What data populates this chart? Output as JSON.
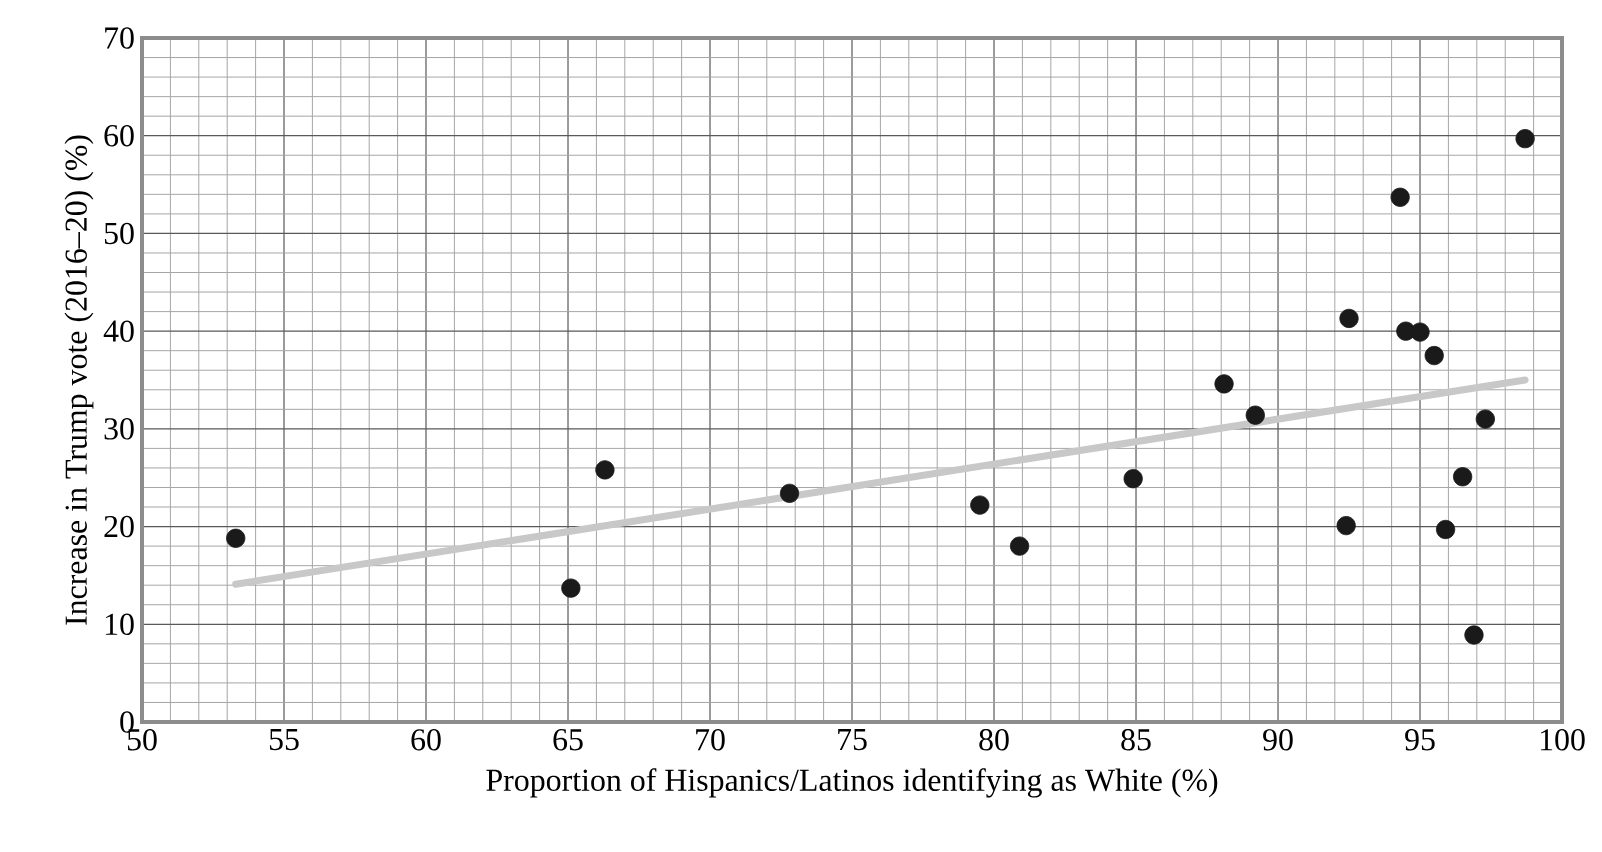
{
  "chart_data": {
    "type": "scatter",
    "xlabel": "Proportion of Hispanics/Latinos identifying as White (%)",
    "ylabel": "Increase in Trump vote (2016–20) (%)",
    "xlim": [
      50,
      100
    ],
    "ylim": [
      0,
      70
    ],
    "xticks": [
      50,
      55,
      60,
      65,
      70,
      75,
      80,
      85,
      90,
      95,
      100
    ],
    "yticks": [
      0,
      10,
      20,
      30,
      40,
      50,
      60,
      70
    ],
    "grid": true,
    "series": [
      {
        "type": "line",
        "marker": "none",
        "color": "#c8c8c8",
        "x": [
          53.3,
          98.7
        ],
        "values": [
          14.1,
          35.0
        ]
      },
      {
        "marker": "circle",
        "color": "#1a1a1a",
        "x": [
          53.3,
          65.1,
          66.3,
          72.8,
          79.5,
          80.9,
          84.9,
          88.1,
          89.2,
          92.5,
          92.4,
          94.3,
          94.5,
          95.0,
          95.5,
          96.5,
          95.9,
          97.3,
          96.9,
          98.7
        ],
        "values": [
          18.8,
          13.7,
          25.8,
          23.4,
          22.2,
          18.0,
          24.9,
          34.6,
          31.4,
          41.3,
          20.1,
          53.7,
          40.0,
          39.9,
          37.5,
          25.1,
          19.7,
          31.0,
          8.9,
          59.7
        ]
      }
    ]
  }
}
